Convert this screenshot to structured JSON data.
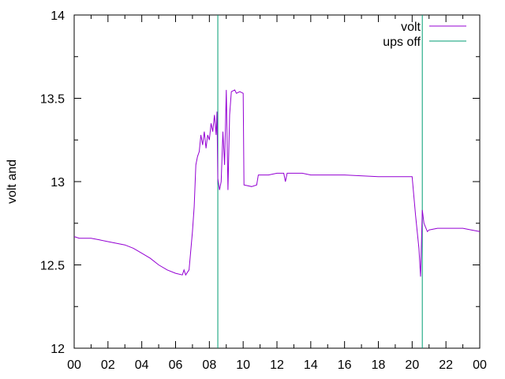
{
  "chart_data": {
    "type": "line",
    "title": "",
    "xlabel": "",
    "ylabel": "volt and",
    "xlim": [
      0,
      24
    ],
    "ylim": [
      12,
      14
    ],
    "x_ticks": [
      "00",
      "02",
      "04",
      "06",
      "08",
      "10",
      "12",
      "14",
      "16",
      "18",
      "20",
      "22",
      "00"
    ],
    "y_ticks": [
      "12",
      "12.5",
      "13",
      "13.5",
      "14"
    ],
    "grid": false,
    "legend_position": "top-right",
    "series": [
      {
        "name": "volt",
        "color": "#9400d3",
        "points": [
          [
            0.0,
            12.67
          ],
          [
            0.3,
            12.66
          ],
          [
            1.0,
            12.66
          ],
          [
            1.5,
            12.65
          ],
          [
            2.0,
            12.64
          ],
          [
            2.5,
            12.63
          ],
          [
            3.0,
            12.62
          ],
          [
            3.5,
            12.6
          ],
          [
            4.0,
            12.57
          ],
          [
            4.5,
            12.54
          ],
          [
            5.0,
            12.5
          ],
          [
            5.5,
            12.47
          ],
          [
            6.0,
            12.45
          ],
          [
            6.4,
            12.44
          ],
          [
            6.5,
            12.47
          ],
          [
            6.6,
            12.44
          ],
          [
            6.8,
            12.47
          ],
          [
            7.0,
            12.7
          ],
          [
            7.1,
            12.85
          ],
          [
            7.2,
            13.1
          ],
          [
            7.3,
            13.15
          ],
          [
            7.4,
            13.18
          ],
          [
            7.5,
            13.28
          ],
          [
            7.6,
            13.22
          ],
          [
            7.7,
            13.3
          ],
          [
            7.8,
            13.2
          ],
          [
            7.9,
            13.28
          ],
          [
            8.0,
            13.25
          ],
          [
            8.1,
            13.35
          ],
          [
            8.2,
            13.3
          ],
          [
            8.3,
            13.4
          ],
          [
            8.4,
            13.28
          ],
          [
            8.45,
            13.42
          ],
          [
            8.5,
            13.02
          ],
          [
            8.6,
            12.95
          ],
          [
            8.7,
            13.0
          ],
          [
            8.8,
            13.3
          ],
          [
            8.9,
            13.1
          ],
          [
            9.0,
            13.55
          ],
          [
            9.1,
            12.95
          ],
          [
            9.2,
            13.4
          ],
          [
            9.3,
            13.54
          ],
          [
            9.5,
            13.55
          ],
          [
            9.6,
            13.53
          ],
          [
            9.8,
            13.54
          ],
          [
            10.0,
            13.53
          ],
          [
            10.05,
            12.98
          ],
          [
            10.5,
            12.97
          ],
          [
            10.8,
            12.98
          ],
          [
            10.9,
            13.04
          ],
          [
            11.5,
            13.04
          ],
          [
            12.0,
            13.05
          ],
          [
            12.4,
            13.05
          ],
          [
            12.5,
            13.0
          ],
          [
            12.6,
            13.05
          ],
          [
            13.5,
            13.05
          ],
          [
            14.0,
            13.04
          ],
          [
            16.0,
            13.04
          ],
          [
            18.0,
            13.03
          ],
          [
            20.0,
            13.03
          ],
          [
            20.2,
            12.8
          ],
          [
            20.4,
            12.6
          ],
          [
            20.5,
            12.43
          ],
          [
            20.6,
            12.83
          ],
          [
            20.7,
            12.75
          ],
          [
            20.9,
            12.7
          ],
          [
            21.0,
            12.71
          ],
          [
            21.5,
            12.72
          ],
          [
            23.0,
            12.72
          ],
          [
            23.5,
            12.71
          ],
          [
            24.0,
            12.7
          ]
        ]
      },
      {
        "name": "ups off",
        "color": "#009e73",
        "vlines": [
          8.5,
          20.6
        ]
      }
    ]
  }
}
